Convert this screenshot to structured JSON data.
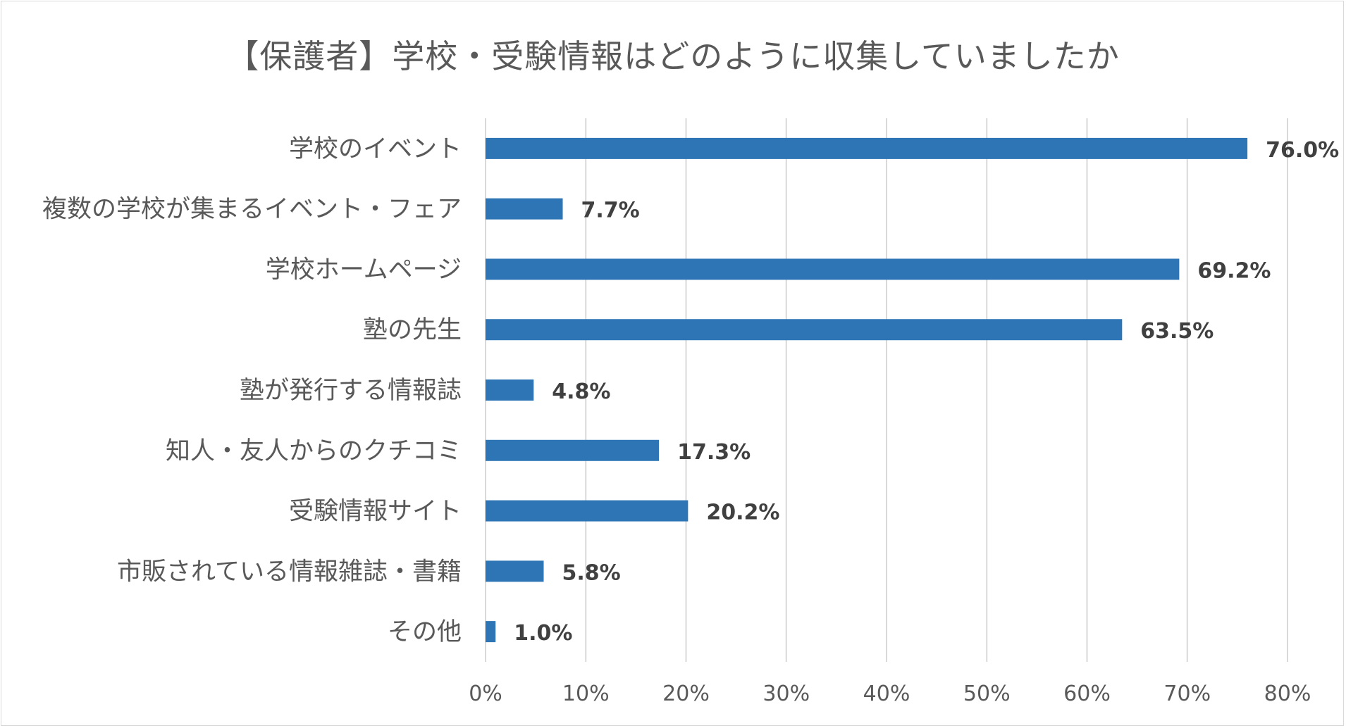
{
  "chart_data": {
    "type": "bar",
    "orientation": "horizontal",
    "title": "【保護者】学校・受験情報はどのように収集していましたか",
    "categories": [
      "学校のイベント",
      "複数の学校が集まるイベント・フェア",
      "学校ホームページ",
      "塾の先生",
      "塾が発行する情報誌",
      "知人・友人からのクチコミ",
      "受験情報サイト",
      "市販されている情報雑誌・書籍",
      "その他"
    ],
    "values": [
      76.0,
      7.7,
      69.2,
      63.5,
      4.8,
      17.3,
      20.2,
      5.8,
      1.0
    ],
    "value_labels": [
      "76.0%",
      "7.7%",
      "69.2%",
      "63.5%",
      "4.8%",
      "17.3%",
      "20.2%",
      "5.8%",
      "1.0%"
    ],
    "xlim": [
      0,
      80
    ],
    "xticks": [
      "0%",
      "10%",
      "20%",
      "30%",
      "40%",
      "50%",
      "60%",
      "70%",
      "80%"
    ],
    "xlabel": "",
    "ylabel": "",
    "grid": "vertical",
    "legend": "none",
    "bar_color": "#2e75b6",
    "grid_color": "#d9d9d9"
  }
}
